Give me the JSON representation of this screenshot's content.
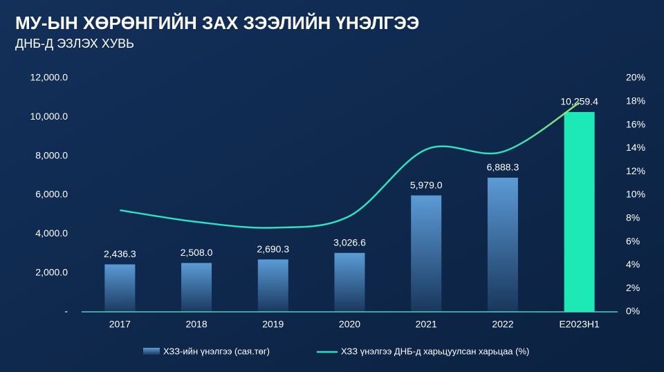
{
  "chart_data": {
    "type": "bar-line",
    "title": "МУ-ЫН ХӨРӨНГИЙН ЗАХ ЗЭЭЛИЙН ҮНЭЛГЭЭ",
    "subtitle": "ДНБ-Д ЭЗЛЭХ ХУВЬ",
    "categories": [
      "2017",
      "2018",
      "2019",
      "2020",
      "2021",
      "2022",
      "E2023H1"
    ],
    "series": [
      {
        "name": "ХЗЗ-ийн үнэлгээ (сая.төг)",
        "type": "bar",
        "color": "#5b9bd5",
        "colors": [
          "#5b9bd5",
          "#5b9bd5",
          "#5b9bd5",
          "#5b9bd5",
          "#5b9bd5",
          "#5b9bd5",
          "#1de9b6"
        ],
        "values": [
          2436.3,
          2508.0,
          2690.3,
          3026.6,
          5979.0,
          6888.3,
          10259.4
        ],
        "value_labels": [
          "2,436.3",
          "2,508.0",
          "2,690.3",
          "3,026.6",
          "5,979.0",
          "6,888.3",
          "10,259.4"
        ]
      },
      {
        "name": "ХЗЗ үнэлгээ ДНБ-д харьцуулсан харьцаа (%)",
        "type": "line",
        "axis": "y2",
        "color": "#2fe0c0",
        "values": [
          8.7,
          7.7,
          7.2,
          8.2,
          13.9,
          13.7,
          17.9
        ]
      }
    ],
    "ylim": [
      0,
      12000
    ],
    "yticks": [
      {
        "value": 0,
        "label": "-"
      },
      {
        "value": 2000,
        "label": "2,000.0"
      },
      {
        "value": 4000,
        "label": "4,000.0"
      },
      {
        "value": 6000,
        "label": "6,000.0"
      },
      {
        "value": 8000,
        "label": "8,000.0"
      },
      {
        "value": 10000,
        "label": "10,000.0"
      },
      {
        "value": 12000,
        "label": "12,000.0"
      }
    ],
    "y2lim": [
      0,
      20
    ],
    "y2ticks": [
      {
        "value": 0,
        "label": "0%"
      },
      {
        "value": 2,
        "label": "2%"
      },
      {
        "value": 4,
        "label": "4%"
      },
      {
        "value": 6,
        "label": "6%"
      },
      {
        "value": 8,
        "label": "8%"
      },
      {
        "value": 10,
        "label": "10%"
      },
      {
        "value": 12,
        "label": "12%"
      },
      {
        "value": 14,
        "label": "14%"
      },
      {
        "value": 16,
        "label": "16%"
      },
      {
        "value": 18,
        "label": "18%"
      },
      {
        "value": 20,
        "label": "20%"
      }
    ],
    "legend": "bottom"
  }
}
